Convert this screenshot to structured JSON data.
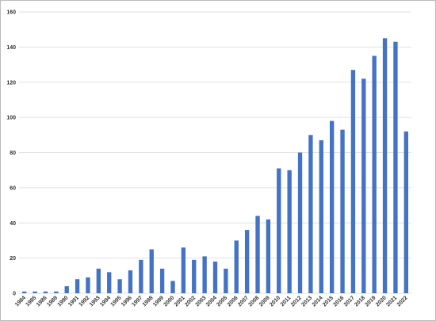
{
  "chart_data": {
    "type": "bar",
    "categories": [
      "1984",
      "1985",
      "1986",
      "1989",
      "1990",
      "1991",
      "1992",
      "1993",
      "1994",
      "1995",
      "1996",
      "1997",
      "1998",
      "1999",
      "2000",
      "2001",
      "2002",
      "2003",
      "2004",
      "2005",
      "2006",
      "2007",
      "2008",
      "2009",
      "2010",
      "2011",
      "2012",
      "2013",
      "2014",
      "2015",
      "2016",
      "2017",
      "2018",
      "2019",
      "2020",
      "2021",
      "2022"
    ],
    "values": [
      1,
      1,
      1,
      1,
      4,
      8,
      9,
      14,
      12,
      8,
      13,
      19,
      25,
      14,
      7,
      26,
      19,
      21,
      18,
      14,
      30,
      36,
      44,
      42,
      71,
      70,
      80,
      90,
      87,
      98,
      93,
      127,
      122,
      135,
      145,
      143,
      92
    ],
    "color": "#4472c4",
    "ylim": [
      0,
      160
    ],
    "yticks": [
      0,
      20,
      40,
      60,
      80,
      100,
      120,
      140,
      160
    ],
    "grid": true
  }
}
